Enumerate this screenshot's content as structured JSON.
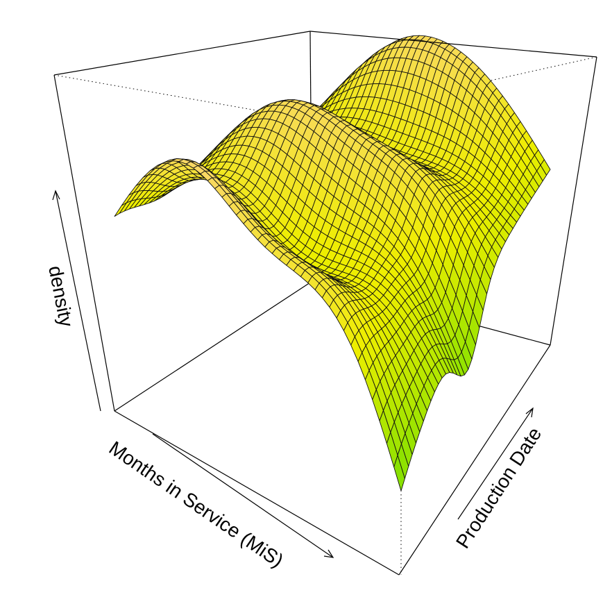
{
  "chart_data": {
    "type": "surface3d",
    "title": "",
    "xlabel": "Months in Service (MiS)",
    "ylabel": "Production Date",
    "zlabel": "density",
    "axis_ticks": false,
    "color_scale": {
      "low": "#66dd00",
      "mid": "#eeee00",
      "high": "#ffcc99"
    },
    "view": {
      "theta_deg": -35,
      "phi_deg": 25
    },
    "grid_size": {
      "x": 40,
      "y": 40
    },
    "surface_description_values": {
      "x_range": [
        0,
        1
      ],
      "y_range": [
        0,
        1
      ],
      "z_range": [
        0,
        1
      ]
    }
  }
}
